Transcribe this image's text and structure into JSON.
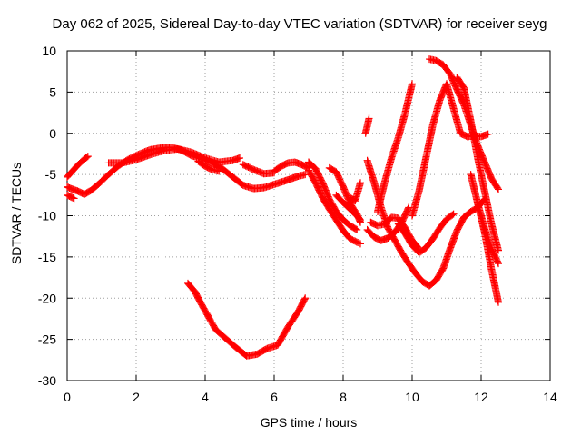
{
  "chart_data": {
    "type": "scatter",
    "title": "Day 062 of 2025, Sidereal Day-to-day VTEC variation (SDTVAR) for receiver seyg",
    "xlabel": "GPS time / hours",
    "ylabel": "SDTVAR / TECUs",
    "xlim": [
      0,
      14
    ],
    "ylim": [
      -30,
      10
    ],
    "xticks": [
      0,
      2,
      4,
      6,
      8,
      10,
      12,
      14
    ],
    "yticks": [
      10,
      5,
      0,
      -5,
      -10,
      -15,
      -20,
      -25,
      -30
    ],
    "grid": true,
    "marker": "+",
    "color": "#ff0000",
    "series": [
      {
        "x": [
          0.0,
          0.1,
          0.3,
          0.5,
          0.7,
          0.9,
          1.2,
          1.5,
          1.8,
          2.1,
          2.4,
          2.7,
          3.0,
          3.3,
          3.6,
          3.9,
          4.2,
          4.5,
          4.8,
          5.1,
          5.4,
          5.7,
          6.0,
          6.3,
          6.5,
          6.7,
          6.9
        ],
        "y": [
          -6.5,
          -6.7,
          -7.0,
          -7.4,
          -6.9,
          -6.2,
          -5.0,
          -3.9,
          -3.1,
          -2.5,
          -2.0,
          -1.8,
          -1.7,
          -2.0,
          -2.7,
          -3.1,
          -3.6,
          -4.3,
          -5.3,
          -6.3,
          -6.7,
          -6.6,
          -6.2,
          -5.8,
          -5.5,
          -5.2,
          -5.0
        ]
      },
      {
        "x": [
          0.0,
          0.15,
          0.3,
          0.45,
          0.6
        ],
        "y": [
          -5.3,
          -4.6,
          -3.9,
          -3.3,
          -2.8
        ]
      },
      {
        "x": [
          0.0,
          0.1,
          0.2
        ],
        "y": [
          -7.5,
          -7.7,
          -7.9
        ]
      },
      {
        "x": [
          1.2,
          1.6,
          2.0,
          2.4,
          2.8,
          3.2,
          3.6,
          4.0,
          4.4,
          4.8,
          5.0
        ],
        "y": [
          -3.6,
          -3.6,
          -3.2,
          -2.6,
          -2.1,
          -1.9,
          -2.3,
          -3.0,
          -3.5,
          -3.3,
          -3.0
        ]
      },
      {
        "x": [
          3.8,
          4.0,
          4.2,
          4.4
        ],
        "y": [
          -3.4,
          -4.0,
          -4.4,
          -4.6
        ]
      },
      {
        "x": [
          5.1,
          5.4,
          5.7,
          6.0
        ],
        "y": [
          -3.8,
          -4.4,
          -4.9,
          -4.8
        ]
      },
      {
        "x": [
          6.0,
          6.2,
          6.4,
          6.6,
          6.8,
          7.0
        ],
        "y": [
          -4.6,
          -4.0,
          -3.6,
          -3.5,
          -3.8,
          -4.2
        ]
      },
      {
        "x": [
          3.5,
          3.7,
          3.9,
          4.1,
          4.3,
          4.6,
          4.9,
          5.2,
          5.5,
          5.8,
          6.1,
          6.4,
          6.7,
          6.9
        ],
        "y": [
          -18.2,
          -19.2,
          -20.8,
          -22.3,
          -23.8,
          -24.9,
          -26.0,
          -27.0,
          -26.8,
          -26.1,
          -25.7,
          -23.5,
          -21.6,
          -20.0
        ]
      },
      {
        "x": [
          7.0,
          7.2,
          7.4,
          7.6,
          7.8,
          8.0,
          8.2,
          8.4
        ],
        "y": [
          -3.5,
          -4.3,
          -6.0,
          -8.0,
          -9.5,
          -10.5,
          -11.2,
          -11.7
        ]
      },
      {
        "x": [
          7.0,
          7.2,
          7.4,
          7.6,
          7.8,
          8.0,
          8.2,
          8.5
        ],
        "y": [
          -4.5,
          -6.0,
          -7.8,
          -9.2,
          -10.5,
          -11.8,
          -12.8,
          -13.4
        ]
      },
      {
        "x": [
          7.6,
          7.8,
          8.0,
          8.2,
          8.4,
          8.5
        ],
        "y": [
          -4.2,
          -4.7,
          -6.5,
          -8.5,
          -9.8,
          -10.8
        ]
      },
      {
        "x": [
          7.8,
          8.0,
          8.2,
          8.4,
          8.5
        ],
        "y": [
          -7.5,
          -8.4,
          -9.2,
          -10.0,
          -10.5
        ]
      },
      {
        "x": [
          8.2,
          8.35,
          8.5
        ],
        "y": [
          -7.8,
          -8.2,
          -6.0
        ]
      },
      {
        "x": [
          8.65,
          8.75
        ],
        "y": [
          0.0,
          1.8
        ]
      },
      {
        "x": [
          8.7,
          8.9,
          9.1,
          9.3,
          9.5,
          9.7,
          9.9,
          10.1,
          10.3,
          10.5,
          10.7,
          10.9,
          11.1,
          11.3,
          11.5
        ],
        "y": [
          -3.3,
          -6.0,
          -9.0,
          -11.5,
          -13.0,
          -14.5,
          -15.8,
          -17.0,
          -18.0,
          -18.5,
          -17.8,
          -16.4,
          -14.0,
          -11.8,
          -10.2
        ]
      },
      {
        "x": [
          11.5,
          11.7,
          11.9,
          12.1
        ],
        "y": [
          -10.2,
          -9.5,
          -9.0,
          -8.0
        ]
      },
      {
        "x": [
          8.7,
          8.9,
          9.1,
          9.3,
          9.5,
          9.7,
          9.9
        ],
        "y": [
          -11.7,
          -12.6,
          -13.0,
          -12.7,
          -12.0,
          -10.8,
          -9.0
        ]
      },
      {
        "x": [
          8.8,
          9.0,
          9.2,
          9.4,
          9.6,
          9.8,
          10.0,
          10.2
        ],
        "y": [
          -10.8,
          -11.2,
          -11.0,
          -10.2,
          -10.3,
          -11.5,
          -13.0,
          -14.0
        ]
      },
      {
        "x": [
          9.0,
          9.2,
          9.4,
          9.6,
          9.8,
          10.0
        ],
        "y": [
          -9.5,
          -6.0,
          -3.0,
          -0.5,
          2.5,
          6.0
        ]
      },
      {
        "x": [
          9.6,
          9.8,
          10.0,
          10.2,
          10.4,
          10.6,
          10.8,
          11.0,
          11.2
        ],
        "y": [
          -11.0,
          -12.2,
          -13.6,
          -14.5,
          -13.9,
          -12.8,
          -11.5,
          -10.4,
          -9.8
        ]
      },
      {
        "x": [
          10.0,
          10.2,
          10.4,
          10.6,
          10.8,
          11.0,
          11.2,
          11.4,
          11.6,
          11.8,
          12.0,
          12.2
        ],
        "y": [
          -10.0,
          -7.0,
          -3.0,
          1.0,
          4.0,
          6.0,
          3.0,
          0.0,
          -0.4,
          -0.3,
          -0.4,
          -0.1
        ]
      },
      {
        "x": [
          10.5,
          10.7,
          10.9,
          11.1,
          11.3,
          11.5,
          11.7,
          11.9,
          12.1,
          12.3,
          12.5
        ],
        "y": [
          9.0,
          8.8,
          8.3,
          7.2,
          5.3,
          3.5,
          1.0,
          -1.5,
          -3.5,
          -5.5,
          -6.8
        ]
      },
      {
        "x": [
          11.3,
          11.5,
          11.7,
          11.9,
          12.1,
          12.3,
          12.5
        ],
        "y": [
          6.8,
          5.5,
          1.5,
          -3.0,
          -7.0,
          -11.0,
          -14.2
        ]
      },
      {
        "x": [
          11.7,
          11.9,
          12.1,
          12.3,
          12.5
        ],
        "y": [
          -5.0,
          -8.5,
          -11.5,
          -14.0,
          -15.8
        ]
      },
      {
        "x": [
          11.9,
          12.1,
          12.3,
          12.5
        ],
        "y": [
          -8.5,
          -12.0,
          -16.5,
          -20.5
        ]
      }
    ]
  }
}
